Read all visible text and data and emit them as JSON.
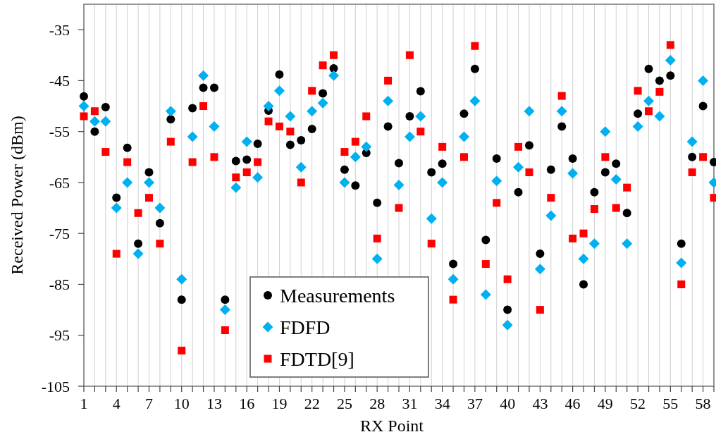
{
  "chart_data": {
    "type": "scatter",
    "xlabel": "RX Point",
    "ylabel": "Received Power (dBm)",
    "x": [
      1,
      2,
      3,
      4,
      5,
      6,
      7,
      8,
      9,
      10,
      11,
      12,
      13,
      14,
      15,
      16,
      17,
      18,
      19,
      20,
      21,
      22,
      23,
      24,
      25,
      26,
      27,
      28,
      29,
      30,
      31,
      32,
      33,
      34,
      35,
      36,
      37,
      38,
      39,
      40,
      41,
      42,
      43,
      44,
      45,
      46,
      47,
      48,
      49,
      50,
      51,
      52,
      53,
      54,
      55,
      56,
      57,
      58,
      59
    ],
    "series": [
      {
        "name": "Measurements",
        "color": "#000000",
        "marker": "circle",
        "values": [
          -48.1,
          -55,
          -50.2,
          -68,
          -58.2,
          -77,
          -63,
          -73,
          -52.6,
          -88,
          -50.4,
          -46.4,
          -46.4,
          -88,
          -60.8,
          -60.5,
          -57.4,
          -50.9,
          -43.8,
          -57.6,
          -56.7,
          -54.5,
          -47.5,
          -42.6,
          -62.5,
          -65.6,
          -59.2,
          -69,
          -54,
          -61.2,
          -52,
          -47.1,
          -63,
          -61.3,
          -81,
          -51.5,
          -42.7,
          -76.3,
          -60.3,
          -90,
          -66.9,
          -57.7,
          -79,
          -62.5,
          -54,
          -60.3,
          -85,
          -66.9,
          -63,
          -61.3,
          -71,
          -51.5,
          -42.7,
          -45,
          -44,
          -77,
          -60,
          -50,
          -61
        ]
      },
      {
        "name": "FDFD",
        "color": "#00b0f0",
        "marker": "diamond",
        "values": [
          -50,
          -53,
          -53,
          -70,
          -65,
          -79,
          -65,
          -70,
          -51,
          -84,
          -56,
          -44,
          -54,
          -90,
          -66,
          -57,
          -64,
          -50,
          -47,
          -52,
          -62,
          -51,
          -49.4,
          -44,
          -65,
          -60,
          -58,
          -80,
          -49,
          -65.5,
          -56,
          -52,
          -72.1,
          -65,
          -84,
          -56,
          -49,
          -87,
          -64.7,
          -93,
          -62,
          -51,
          -82,
          -71.5,
          -51,
          -63.2,
          -80,
          -77,
          -55,
          -64.4,
          -77,
          -54,
          -49,
          -52,
          -41,
          -80.8,
          -57,
          -45,
          -65
        ]
      },
      {
        "name": "FDTD[9]",
        "color": "#ff0000",
        "marker": "square",
        "values": [
          -52,
          -51,
          -59,
          -79,
          -61,
          -71,
          -68,
          -77,
          -57,
          -98,
          -61,
          -50,
          -60,
          -94,
          -64,
          -63,
          -61,
          -53,
          -54,
          -55,
          -65,
          -47,
          -42,
          -40,
          -59,
          -57,
          -52,
          -76,
          -45,
          -70,
          -40,
          -55,
          -77,
          -58,
          -88,
          -60,
          -38.2,
          -81,
          -69,
          -84,
          -58,
          -63,
          -90,
          -68,
          -48,
          -76,
          -75,
          -70.2,
          -60,
          -70,
          -66,
          -47,
          -51,
          -47.2,
          -38,
          -85,
          -63,
          -60,
          -68
        ]
      }
    ],
    "xlim": [
      1,
      59
    ],
    "xticks": [
      1,
      {
        "value": 2,
        "label": null
      },
      {
        "value": 3,
        "label": null
      },
      4,
      {
        "value": 5,
        "label": null
      },
      {
        "value": 6,
        "label": null
      },
      7,
      {
        "value": 8,
        "label": null
      },
      {
        "value": 9,
        "label": null
      },
      10,
      {
        "value": 11,
        "label": null
      },
      {
        "value": 12,
        "label": null
      },
      13,
      {
        "value": 14,
        "label": null
      },
      {
        "value": 15,
        "label": null
      },
      16,
      {
        "value": 17,
        "label": null
      },
      {
        "value": 18,
        "label": null
      },
      19,
      {
        "value": 20,
        "label": null
      },
      {
        "value": 21,
        "label": null
      },
      22,
      {
        "value": 23,
        "label": null
      },
      {
        "value": 24,
        "label": null
      },
      25,
      {
        "value": 26,
        "label": null
      },
      {
        "value": 27,
        "label": null
      },
      28,
      {
        "value": 29,
        "label": null
      },
      {
        "value": 30,
        "label": null
      },
      31,
      {
        "value": 32,
        "label": null
      },
      {
        "value": 33,
        "label": null
      },
      34,
      {
        "value": 35,
        "label": null
      },
      {
        "value": 36,
        "label": null
      },
      37,
      {
        "value": 38,
        "label": null
      },
      {
        "value": 39,
        "label": null
      },
      40,
      {
        "value": 41,
        "label": null
      },
      {
        "value": 42,
        "label": null
      },
      43,
      {
        "value": 44,
        "label": null
      },
      {
        "value": 45,
        "label": null
      },
      46,
      {
        "value": 47,
        "label": null
      },
      {
        "value": 48,
        "label": null
      },
      49,
      {
        "value": 50,
        "label": null
      },
      {
        "value": 51,
        "label": null
      },
      52,
      {
        "value": 53,
        "label": null
      },
      {
        "value": 54,
        "label": null
      },
      55,
      {
        "value": 56,
        "label": null
      },
      {
        "value": 57,
        "label": null
      },
      58,
      {
        "value": 59,
        "label": null
      }
    ],
    "ylim": [
      -105,
      -30
    ],
    "yticks": [
      -105,
      -95,
      -85,
      -75,
      -65,
      -55,
      -45,
      -35
    ],
    "grid": "x",
    "legend": "bottom"
  }
}
